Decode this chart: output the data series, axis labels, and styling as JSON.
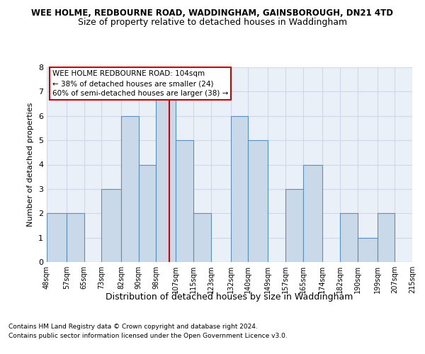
{
  "title_line1": "WEE HOLME, REDBOURNE ROAD, WADDINGHAM, GAINSBOROUGH, DN21 4TD",
  "title_line2": "Size of property relative to detached houses in Waddingham",
  "xlabel": "Distribution of detached houses by size in Waddingham",
  "ylabel": "Number of detached properties",
  "bin_edges": [
    48,
    57,
    65,
    73,
    82,
    90,
    98,
    107,
    115,
    123,
    132,
    140,
    149,
    157,
    165,
    174,
    182,
    190,
    199,
    207,
    215
  ],
  "bar_heights": [
    2,
    2,
    0,
    3,
    6,
    4,
    7,
    5,
    2,
    0,
    6,
    5,
    0,
    3,
    4,
    0,
    2,
    1,
    2,
    0
  ],
  "bar_facecolor": "#c9d9ea",
  "bar_edgecolor": "#5a8fc0",
  "bar_linewidth": 0.8,
  "property_size": 104,
  "vline_color": "#cc0000",
  "vline_linewidth": 1.5,
  "annotation_text": "WEE HOLME REDBOURNE ROAD: 104sqm\n← 38% of detached houses are smaller (24)\n60% of semi-detached houses are larger (38) →",
  "annotation_box_facecolor": "white",
  "annotation_box_edgecolor": "#cc0000",
  "ylim": [
    0,
    8
  ],
  "yticks": [
    0,
    1,
    2,
    3,
    4,
    5,
    6,
    7,
    8
  ],
  "tick_labels": [
    "48sqm",
    "57sqm",
    "65sqm",
    "73sqm",
    "82sqm",
    "90sqm",
    "98sqm",
    "107sqm",
    "115sqm",
    "123sqm",
    "132sqm",
    "140sqm",
    "149sqm",
    "157sqm",
    "165sqm",
    "174sqm",
    "182sqm",
    "190sqm",
    "199sqm",
    "207sqm",
    "215sqm"
  ],
  "grid_color": "#d0d8e8",
  "background_color": "#eaf0f8",
  "footer_line1": "Contains HM Land Registry data © Crown copyright and database right 2024.",
  "footer_line2": "Contains public sector information licensed under the Open Government Licence v3.0.",
  "title1_fontsize": 8.5,
  "title2_fontsize": 9,
  "xlabel_fontsize": 9,
  "ylabel_fontsize": 8,
  "tick_fontsize": 7,
  "ytick_fontsize": 8,
  "footer_fontsize": 6.5,
  "annotation_fontsize": 7.5
}
